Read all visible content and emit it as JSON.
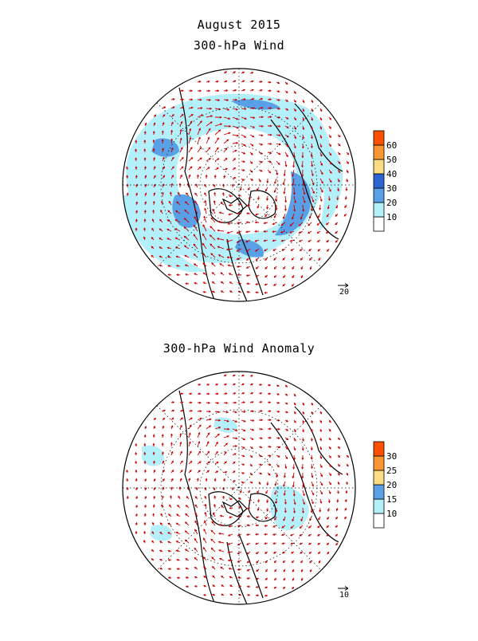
{
  "title": "August 2015",
  "panels": [
    {
      "subtitle": "300-hPa Wind",
      "colorbar": {
        "levels": [
          "10",
          "20",
          "30",
          "40",
          "50",
          "60"
        ],
        "colors": [
          "#ffffff",
          "#b4f0fa",
          "#5aa0e6",
          "#2d64d2",
          "#fadc82",
          "#fa9632",
          "#fa5000"
        ]
      },
      "vector_ref": "20"
    },
    {
      "subtitle": "300-hPa Wind Anomaly",
      "colorbar": {
        "levels": [
          "10",
          "15",
          "20",
          "25",
          "30"
        ],
        "colors": [
          "#ffffff",
          "#b4f0fa",
          "#5aa0e6",
          "#fadc82",
          "#fa9632",
          "#fa5000"
        ]
      },
      "vector_ref": "10"
    }
  ],
  "colors": {
    "arrow": "#c80000",
    "coast": "#000000",
    "grid": "#000000"
  }
}
